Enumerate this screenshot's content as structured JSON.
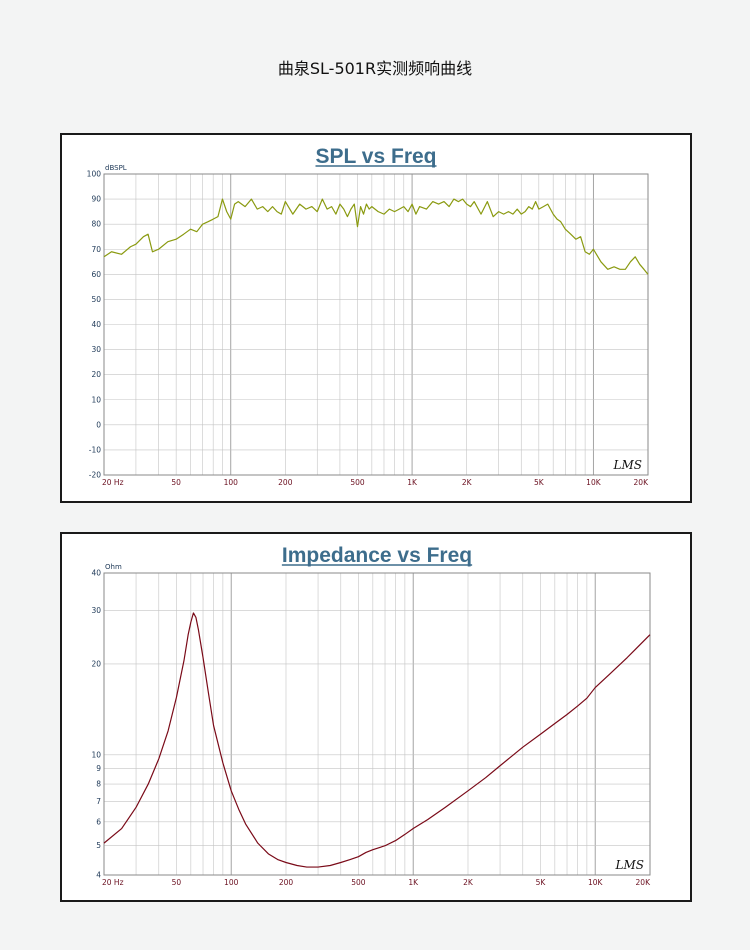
{
  "page": {
    "title": "曲泉SL-501R实测频响曲线"
  },
  "chart_data": [
    {
      "type": "line",
      "title": "SPL vs Freq",
      "ylabel": "dBSPL",
      "xscale": "log",
      "xlim": [
        20,
        20000
      ],
      "ylim": [
        -20,
        100
      ],
      "grid": true,
      "x_tick_labels": [
        "20 Hz",
        "50",
        "100",
        "200",
        "500",
        "1K",
        "2K",
        "5K",
        "10K",
        "20K"
      ],
      "y_ticks": [
        -20,
        -10,
        0,
        10,
        20,
        30,
        40,
        50,
        60,
        70,
        80,
        90,
        100
      ],
      "watermark": "LMS",
      "line_color": "#8a9a10",
      "series": [
        {
          "x": [
            20,
            22,
            25,
            28,
            30,
            33,
            35,
            37,
            40,
            45,
            50,
            55,
            60,
            65,
            70,
            75,
            80,
            85,
            90,
            95,
            100,
            105,
            110,
            120,
            130,
            140,
            150,
            160,
            170,
            180,
            190,
            200,
            220,
            240,
            260,
            280,
            300,
            320,
            340,
            360,
            380,
            400,
            420,
            440,
            460,
            480,
            500,
            520,
            540,
            560,
            580,
            600,
            650,
            700,
            750,
            800,
            850,
            900,
            950,
            1000,
            1050,
            1100,
            1200,
            1300,
            1400,
            1500,
            1600,
            1700,
            1800,
            1900,
            2000,
            2100,
            2200,
            2400,
            2600,
            2800,
            3000,
            3200,
            3400,
            3600,
            3800,
            4000,
            4200,
            4400,
            4600,
            4800,
            5000,
            5300,
            5600,
            6000,
            6300,
            6600,
            7000,
            7500,
            8000,
            8500,
            9000,
            9500,
            10000,
            11000,
            12000,
            13000,
            14000,
            15000,
            16000,
            17000,
            18000,
            19000,
            20000
          ],
          "y": [
            67,
            69,
            68,
            71,
            72,
            75,
            76,
            69,
            70,
            73,
            74,
            76,
            78,
            77,
            80,
            81,
            82,
            83,
            90,
            85,
            82,
            88,
            89,
            87,
            90,
            86,
            87,
            85,
            87,
            85,
            84,
            89,
            84,
            88,
            86,
            87,
            85,
            90,
            86,
            87,
            84,
            88,
            86,
            83,
            86,
            88,
            79,
            87,
            84,
            88,
            86,
            87,
            85,
            84,
            86,
            85,
            86,
            87,
            85,
            88,
            84,
            87,
            86,
            89,
            88,
            89,
            87,
            90,
            89,
            90,
            88,
            87,
            89,
            84,
            89,
            83,
            85,
            84,
            85,
            84,
            86,
            84,
            85,
            87,
            86,
            89,
            86,
            87,
            88,
            84,
            82,
            81,
            78,
            76,
            74,
            75,
            69,
            68,
            70,
            65,
            62,
            63,
            62,
            62,
            65,
            67,
            64,
            62,
            60
          ]
        }
      ]
    },
    {
      "type": "line",
      "title": "Impedance vs Freq",
      "ylabel": "Ohm",
      "xscale": "log",
      "yscale": "log",
      "xlim": [
        20,
        20000
      ],
      "ylim": [
        4,
        40
      ],
      "grid": true,
      "x_tick_labels": [
        "20 Hz",
        "50",
        "100",
        "200",
        "500",
        "1K",
        "2K",
        "5K",
        "10K",
        "20K"
      ],
      "y_ticks": [
        4,
        5,
        6,
        7,
        8,
        9,
        10,
        20,
        30,
        40
      ],
      "watermark": "LMS",
      "line_color": "#7a0a18",
      "series": [
        {
          "x": [
            20,
            25,
            30,
            35,
            40,
            45,
            50,
            55,
            58,
            60,
            62,
            64,
            66,
            70,
            75,
            80,
            90,
            100,
            110,
            120,
            140,
            160,
            180,
            200,
            230,
            260,
            300,
            350,
            400,
            450,
            500,
            550,
            600,
            700,
            800,
            900,
            1000,
            1200,
            1500,
            2000,
            2500,
            3000,
            4000,
            5000,
            6000,
            7000,
            8000,
            9000,
            10000,
            12000,
            15000,
            20000
          ],
          "y": [
            5.1,
            5.7,
            6.7,
            8.0,
            9.7,
            12.0,
            15.5,
            20.5,
            25.0,
            27.5,
            29.5,
            28.5,
            26.0,
            21.0,
            16.0,
            12.5,
            9.4,
            7.6,
            6.6,
            5.9,
            5.1,
            4.7,
            4.5,
            4.4,
            4.3,
            4.25,
            4.25,
            4.3,
            4.4,
            4.5,
            4.6,
            4.75,
            4.85,
            5.0,
            5.2,
            5.45,
            5.7,
            6.1,
            6.7,
            7.6,
            8.4,
            9.2,
            10.6,
            11.7,
            12.7,
            13.6,
            14.5,
            15.4,
            16.7,
            18.5,
            21.0,
            25.0
          ]
        }
      ]
    }
  ]
}
